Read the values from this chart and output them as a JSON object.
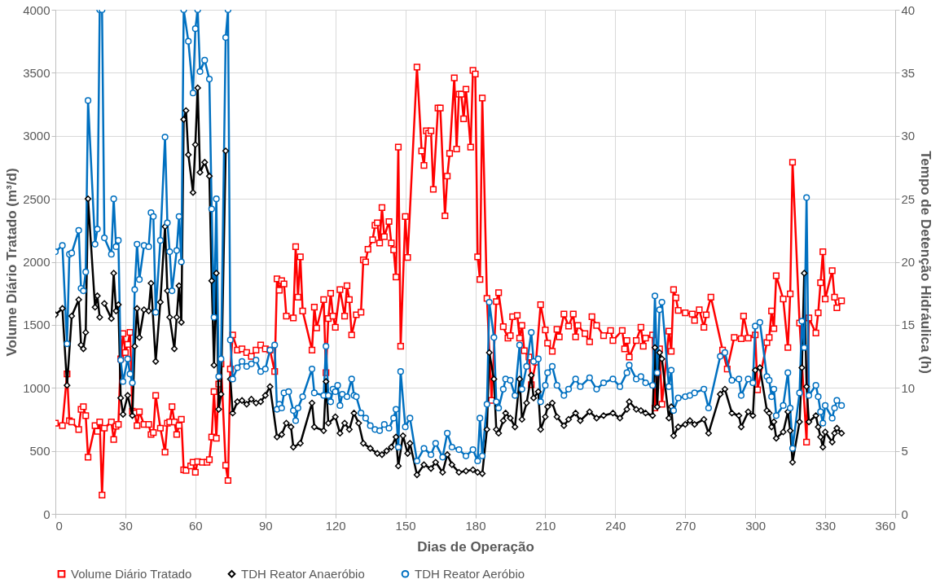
{
  "chart_data": {
    "type": "line",
    "xlabel": "Dias de Operação",
    "ylabel": "Volume Diário Tratado (m³/d)",
    "y2label": "Tempo de Detenção Hidráulica (h)",
    "xlim": [
      0,
      360
    ],
    "xticks": [
      0,
      30,
      60,
      90,
      120,
      150,
      180,
      210,
      240,
      270,
      300,
      330,
      360
    ],
    "ylim": [
      0,
      4000
    ],
    "yticks": [
      0,
      500,
      1000,
      1500,
      2000,
      2500,
      3000,
      3500,
      4000
    ],
    "y2lim": [
      0,
      40
    ],
    "y2ticks": [
      0,
      5,
      10,
      15,
      20,
      25,
      30,
      35,
      40
    ],
    "grid": true,
    "legend": "bottom",
    "series": [
      {
        "name": "Volume Diário Tratado",
        "color": "#ff0000",
        "marker": "square",
        "x": [
          0,
          3,
          5,
          6,
          7,
          10,
          11,
          12,
          13,
          14,
          17,
          18,
          19,
          20,
          21,
          24,
          25,
          26,
          27,
          28,
          29,
          30,
          31,
          32,
          33,
          34,
          35,
          36,
          38,
          40,
          41,
          42,
          43,
          45,
          47,
          48,
          49,
          50,
          51,
          52,
          53,
          54,
          55,
          56,
          58,
          59,
          60,
          61,
          63,
          65,
          66,
          67,
          68,
          69,
          70,
          71,
          73,
          74,
          75,
          76,
          78,
          80,
          82,
          84,
          86,
          88,
          90,
          92,
          94,
          95,
          96,
          97,
          98,
          99,
          102,
          103,
          104,
          105,
          106,
          110,
          111,
          112,
          115,
          116,
          117,
          118,
          119,
          120,
          122,
          124,
          125,
          126,
          127,
          129,
          131,
          132,
          133,
          134,
          136,
          137,
          138,
          139,
          140,
          141,
          143,
          144,
          145,
          146,
          147,
          148,
          150,
          151,
          155,
          157,
          158,
          159,
          160,
          161,
          162,
          164,
          165,
          167,
          168,
          169,
          171,
          172,
          173,
          174,
          175,
          176,
          178,
          179,
          180,
          181,
          182,
          183,
          185,
          187,
          189,
          190,
          192,
          194,
          195,
          196,
          198,
          199,
          200,
          201,
          203,
          204,
          206,
          208,
          210,
          211,
          213,
          215,
          216,
          218,
          220,
          222,
          223,
          224,
          227,
          229,
          230,
          232,
          235,
          238,
          239,
          243,
          244,
          245,
          246,
          249,
          251,
          252,
          253,
          256,
          257,
          259,
          260,
          263,
          264,
          265,
          266,
          267,
          270,
          273,
          274,
          276,
          278,
          279,
          281,
          286,
          288,
          291,
          294,
          295,
          297,
          300,
          301,
          305,
          306,
          307,
          308,
          309,
          312,
          314,
          315,
          316,
          319,
          322,
          323,
          326,
          327,
          328,
          329,
          330,
          333,
          334,
          335,
          337
        ],
        "values": [
          720,
          700,
          1110,
          740,
          730,
          670,
          830,
          850,
          780,
          450,
          700,
          655,
          730,
          150,
          680,
          730,
          590,
          695,
          710,
          1230,
          1430,
          1280,
          1345,
          1440,
          815,
          800,
          700,
          810,
          710,
          710,
          630,
          645,
          940,
          680,
          490,
          720,
          730,
          850,
          730,
          630,
          700,
          750,
          350,
          345,
          380,
          410,
          330,
          415,
          410,
          410,
          430,
          610,
          970,
          600,
          1030,
          1190,
          385,
          265,
          1150,
          1420,
          1300,
          1310,
          1280,
          1250,
          1300,
          1340,
          1310,
          1300,
          1130,
          1865,
          1775,
          1850,
          1825,
          1570,
          1555,
          2120,
          1720,
          2040,
          1610,
          1300,
          1640,
          1475,
          1700,
          1120,
          1550,
          1750,
          1570,
          1480,
          1780,
          1570,
          1810,
          1700,
          1420,
          1580,
          1600,
          2015,
          2000,
          2100,
          2175,
          2290,
          2310,
          2150,
          2430,
          2200,
          2320,
          2150,
          2095,
          1880,
          2910,
          1330,
          2360,
          2035,
          3545,
          2880,
          2765,
          3040,
          3020,
          3040,
          2575,
          3220,
          3220,
          2365,
          2680,
          2860,
          3460,
          2895,
          3330,
          3330,
          3135,
          3370,
          2910,
          3520,
          3490,
          2040,
          1860,
          3300,
          1710,
          900,
          1685,
          1755,
          1485,
          1395,
          1415,
          1565,
          1575,
          1395,
          1495,
          1295,
          1245,
          1025,
          1205,
          1660,
          1460,
          1355,
          1290,
          1465,
          1405,
          1585,
          1490,
          1585,
          1405,
          1495,
          1430,
          1365,
          1565,
          1495,
          1415,
          1455,
          1375,
          1455,
          1310,
          1375,
          1245,
          1375,
          1480,
          1330,
          1395,
          1420,
          840,
          1310,
          870,
          1450,
          1290,
          1780,
          1715,
          1615,
          1595,
          1585,
          1535,
          1620,
          1480,
          1580,
          1720,
          1300,
          1150,
          1400,
          1390,
          1570,
          1395,
          1420,
          985,
          1360,
          1400,
          1610,
          1470,
          1890,
          1705,
          1320,
          1745,
          2790,
          1515,
          570,
          1555,
          1435,
          1595,
          1835,
          2080,
          1705,
          1930,
          1720,
          1635,
          1690
        ]
      },
      {
        "name": "TDH Reator Anaeróbio",
        "color": "#000000",
        "marker": "diamond",
        "axis": "y2",
        "x": [
          0,
          3,
          5,
          7,
          10,
          11,
          12,
          13,
          14,
          17,
          18,
          19,
          20,
          21,
          24,
          25,
          26,
          27,
          28,
          29,
          31,
          33,
          34,
          35,
          36,
          38,
          40,
          41,
          43,
          45,
          47,
          48,
          49,
          51,
          52,
          53,
          54,
          55,
          56,
          57,
          59,
          60,
          61,
          62,
          64,
          66,
          67,
          68,
          69,
          70,
          71,
          73,
          74,
          75,
          76,
          78,
          80,
          82,
          84,
          86,
          88,
          90,
          92,
          95,
          97,
          99,
          101,
          102,
          105,
          110,
          111,
          115,
          116,
          117,
          120,
          122,
          124,
          126,
          128,
          130,
          132,
          135,
          138,
          140,
          142,
          144,
          146,
          147,
          149,
          151,
          152,
          155,
          158,
          161,
          163,
          166,
          168,
          170,
          173,
          176,
          179,
          181,
          183,
          185,
          186,
          188,
          189,
          190,
          192,
          193,
          195,
          197,
          199,
          200,
          202,
          204,
          205,
          207,
          208,
          210,
          211,
          213,
          215,
          218,
          220,
          223,
          225,
          229,
          232,
          235,
          239,
          242,
          245,
          246,
          249,
          251,
          253,
          256,
          257,
          258,
          259,
          260,
          263,
          264,
          265,
          267,
          270,
          272,
          274,
          278,
          280,
          285,
          287,
          290,
          293,
          294,
          297,
          299,
          300,
          302,
          305,
          306,
          307,
          308,
          309,
          312,
          314,
          315,
          316,
          319,
          320,
          321,
          322,
          323,
          326,
          327,
          328,
          329,
          330,
          333,
          334,
          335,
          337
        ],
        "values": [
          15.8,
          16.3,
          10.2,
          15.7,
          17.0,
          13.4,
          13.1,
          14.4,
          25.0,
          16.4,
          17.3,
          15.6,
          null,
          16.7,
          15.5,
          19.1,
          16.1,
          16.6,
          9.2,
          7.9,
          9.4,
          7.8,
          13.3,
          16.3,
          14.0,
          16.2,
          16.1,
          18.3,
          12.1,
          16.8,
          22.8,
          17.7,
          15.6,
          13.1,
          15.6,
          18.1,
          15.2,
          31.3,
          32.0,
          28.5,
          25.5,
          29.3,
          33.8,
          27.1,
          27.9,
          26.8,
          18.5,
          11.8,
          19.1,
          8.3,
          9.5,
          28.8,
          null,
          10.7,
          8.0,
          8.9,
          9.0,
          8.7,
          9.1,
          8.8,
          8.9,
          9.4,
          10.1,
          6.1,
          6.3,
          7.2,
          6.9,
          5.3,
          5.6,
          8.8,
          6.9,
          6.6,
          10.5,
          7.2,
          7.7,
          6.4,
          7.2,
          6.7,
          8.0,
          7.2,
          5.6,
          5.2,
          4.8,
          4.7,
          5.0,
          5.3,
          6.1,
          3.8,
          6.2,
          4.8,
          5.6,
          3.1,
          3.9,
          3.6,
          4.1,
          3.3,
          4.7,
          3.9,
          3.3,
          3.4,
          3.5,
          3.3,
          3.2,
          6.7,
          12.8,
          10.7,
          6.7,
          6.4,
          7.4,
          8.0,
          7.6,
          6.9,
          10.7,
          7.5,
          8.8,
          11.0,
          9.2,
          9.7,
          6.7,
          7.7,
          8.5,
          8.8,
          7.7,
          7.0,
          7.5,
          8.0,
          7.4,
          8.1,
          7.6,
          7.8,
          8.0,
          7.6,
          8.3,
          8.9,
          8.3,
          8.2,
          8.0,
          7.8,
          13.2,
          8.5,
          12.8,
          12.3,
          7.6,
          8.5,
          6.2,
          6.9,
          7.1,
          7.4,
          7.1,
          7.5,
          6.4,
          9.5,
          9.9,
          8.0,
          7.8,
          6.9,
          8.1,
          7.8,
          11.4,
          11.6,
          8.2,
          8.0,
          6.9,
          7.3,
          6.0,
          6.5,
          8.1,
          6.6,
          4.1,
          7.3,
          11.6,
          19.1,
          10.1,
          7.3,
          7.8,
          6.9,
          6.1,
          5.3,
          6.5,
          5.7,
          6.4,
          6.8,
          6.4
        ]
      },
      {
        "name": "TDH Reator Aeróbio",
        "color": "#0070c0",
        "marker": "circle",
        "axis": "y2",
        "x": [
          0,
          3,
          5,
          6,
          7,
          10,
          11,
          12,
          13,
          14,
          17,
          18,
          19,
          20,
          21,
          24,
          25,
          26,
          27,
          28,
          29,
          31,
          32,
          33,
          34,
          35,
          36,
          38,
          40,
          41,
          42,
          43,
          45,
          47,
          48,
          49,
          50,
          52,
          53,
          54,
          55,
          57,
          59,
          60,
          61,
          62,
          64,
          66,
          67,
          68,
          69,
          70,
          71,
          73,
          74,
          75,
          76,
          78,
          80,
          82,
          84,
          86,
          88,
          90,
          92,
          94,
          95,
          96,
          97,
          98,
          100,
          102,
          103,
          104,
          106,
          110,
          111,
          115,
          116,
          117,
          118,
          119,
          120,
          121,
          122,
          123,
          125,
          127,
          128,
          129,
          131,
          133,
          135,
          137,
          139,
          141,
          143,
          145,
          146,
          147,
          148,
          150,
          152,
          155,
          158,
          161,
          163,
          166,
          168,
          170,
          173,
          176,
          179,
          181,
          182,
          183,
          185,
          186,
          188,
          189,
          190,
          192,
          193,
          195,
          197,
          199,
          200,
          202,
          204,
          205,
          207,
          208,
          210,
          211,
          213,
          215,
          218,
          220,
          223,
          225,
          229,
          232,
          235,
          239,
          242,
          245,
          246,
          249,
          251,
          253,
          256,
          257,
          258,
          259,
          260,
          263,
          264,
          265,
          267,
          270,
          272,
          274,
          278,
          280,
          285,
          287,
          290,
          293,
          294,
          297,
          299,
          300,
          302,
          305,
          306,
          307,
          308,
          309,
          312,
          314,
          315,
          316,
          319,
          320,
          321,
          322,
          323,
          326,
          327,
          328,
          329,
          330,
          333,
          334,
          335,
          337
        ],
        "values": [
          20.8,
          21.3,
          13.5,
          20.6,
          20.7,
          22.5,
          17.9,
          17.7,
          19.2,
          32.8,
          21.4,
          22.6,
          40,
          40,
          21.9,
          20.6,
          25.0,
          21.2,
          21.7,
          12.2,
          10.5,
          12.3,
          11.1,
          10.4,
          17.8,
          21.4,
          18.6,
          21.3,
          21.2,
          23.9,
          23.6,
          16.0,
          21.7,
          29.9,
          23.1,
          20.8,
          17.7,
          20.9,
          23.6,
          20.0,
          40,
          37.5,
          33.4,
          38.5,
          40,
          35.1,
          36.0,
          34.5,
          24.2,
          15.6,
          25.0,
          10.9,
          12.3,
          37.8,
          40,
          13.8,
          10.7,
          11.6,
          12.1,
          11.7,
          11.9,
          12.2,
          11.3,
          11.5,
          13.0,
          13.4,
          8.3,
          8.7,
          8.4,
          9.6,
          9.7,
          8.2,
          7.4,
          8.4,
          9.3,
          11.5,
          9.6,
          9.4,
          13.3,
          9.4,
          8.9,
          9.9,
          9.7,
          10.2,
          8.6,
          9.5,
          9.3,
          10.7,
          9.4,
          9.3,
          8.0,
          7.6,
          7.0,
          6.7,
          6.6,
          7.1,
          6.8,
          7.6,
          8.3,
          5.3,
          11.3,
          6.9,
          7.6,
          4.2,
          5.2,
          4.7,
          5.6,
          4.5,
          6.4,
          5.3,
          5.1,
          4.6,
          5.1,
          4.2,
          7.6,
          4.6,
          8.7,
          16.8,
          14.0,
          8.9,
          8.4,
          9.9,
          10.7,
          10.6,
          9.4,
          13.4,
          9.9,
          11.7,
          14.4,
          12.1,
          12.3,
          8.9,
          10.2,
          11.2,
          11.7,
          10.2,
          9.4,
          9.9,
          10.7,
          10.1,
          10.8,
          9.9,
          10.4,
          10.7,
          10.1,
          11.2,
          11.8,
          10.7,
          10.9,
          10.4,
          10.2,
          17.3,
          11.2,
          16.2,
          16.8,
          10.1,
          11.4,
          8.2,
          9.2,
          9.3,
          9.4,
          9.6,
          9.9,
          8.4,
          12.5,
          12.8,
          10.6,
          10.7,
          9.4,
          10.7,
          10.4,
          14.9,
          15.2,
          10.9,
          10.6,
          9.3,
          9.9,
          7.8,
          8.6,
          11.2,
          8.4,
          5.2,
          9.6,
          15.3,
          13.2,
          25.1,
          9.4,
          10.2,
          9.3,
          8.1,
          7.2,
          8.6,
          7.6,
          8.4,
          9.0,
          8.6
        ]
      }
    ]
  }
}
